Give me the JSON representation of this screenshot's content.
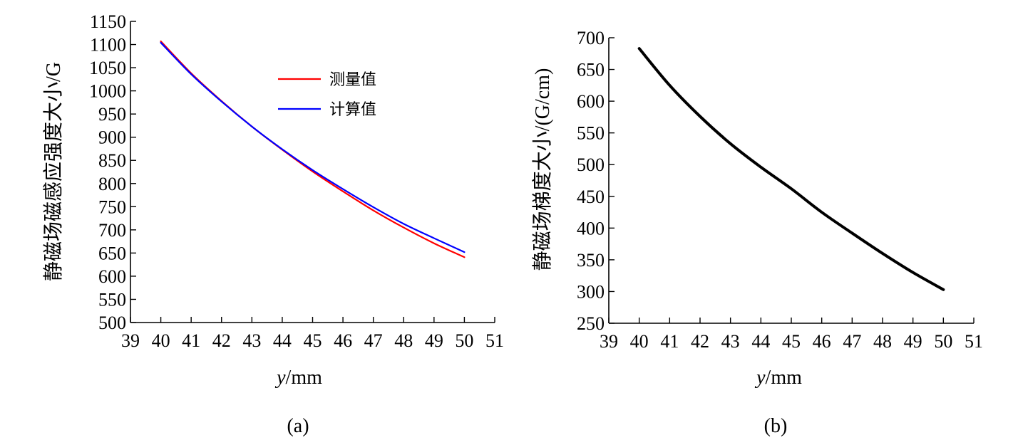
{
  "chart_data": [
    {
      "type": "line",
      "caption": "(a)",
      "xlabel_italic": "y",
      "xlabel_unit": "/mm",
      "ylabel": "静磁场磁感应强度大小/G",
      "xlim": [
        39,
        51
      ],
      "ylim": [
        500,
        1150
      ],
      "xticks": [
        39,
        40,
        41,
        42,
        43,
        44,
        45,
        46,
        47,
        48,
        49,
        50,
        51
      ],
      "yticks": [
        500,
        550,
        600,
        650,
        700,
        750,
        800,
        850,
        900,
        950,
        1000,
        1050,
        1100,
        1150
      ],
      "grid": false,
      "legend_position": "top-right",
      "x": [
        40,
        41,
        42,
        43,
        44,
        45,
        46,
        47,
        48,
        49,
        50
      ],
      "series": [
        {
          "name": "测量值",
          "color": "#ff0000",
          "values": [
            1107,
            1038,
            978,
            923,
            873,
            826,
            783,
            742,
            705,
            671,
            641
          ]
        },
        {
          "name": "计算值",
          "color": "#0000ff",
          "values": [
            1104,
            1036,
            977,
            923,
            874,
            829,
            788,
            749,
            713,
            682,
            652
          ]
        }
      ]
    },
    {
      "type": "line",
      "caption": "(b)",
      "xlabel_italic": "y",
      "xlabel_unit": "/mm",
      "ylabel": "静磁场梯度大小/(G/cm)",
      "xlim": [
        39,
        51
      ],
      "ylim": [
        250,
        700
      ],
      "xticks": [
        39,
        40,
        41,
        42,
        43,
        44,
        45,
        46,
        47,
        48,
        49,
        50,
        51
      ],
      "yticks": [
        250,
        300,
        350,
        400,
        450,
        500,
        550,
        600,
        650,
        700
      ],
      "grid": false,
      "x": [
        40,
        41,
        42,
        43,
        44,
        45,
        46,
        47,
        48,
        49,
        50
      ],
      "series": [
        {
          "color": "#000000",
          "values": [
            683,
            625,
            576,
            533,
            496,
            462,
            425,
            392,
            360,
            330,
            303
          ]
        }
      ]
    }
  ]
}
